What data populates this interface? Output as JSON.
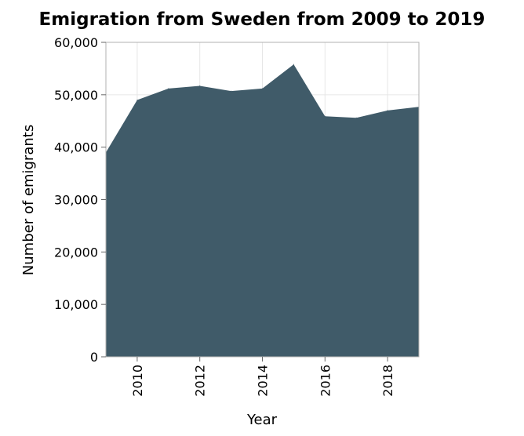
{
  "chart_data": {
    "type": "area",
    "title": "Emigration from Sweden from 2009 to 2019",
    "xlabel": "Year",
    "ylabel": "Number of emigrants",
    "x": [
      2009,
      2010,
      2011,
      2012,
      2013,
      2014,
      2015,
      2016,
      2017,
      2018,
      2019
    ],
    "values": [
      39000,
      49000,
      51200,
      51700,
      50700,
      51200,
      55800,
      45900,
      45600,
      47000,
      47700
    ],
    "xlim": [
      2009,
      2019
    ],
    "ylim": [
      0,
      60000
    ],
    "x_ticks": [
      2010,
      2012,
      2014,
      2016,
      2018
    ],
    "x_tick_labels": [
      "2010",
      "2012",
      "2014",
      "2016",
      "2018"
    ],
    "y_ticks": [
      0,
      10000,
      20000,
      30000,
      40000,
      50000,
      60000
    ],
    "y_tick_labels": [
      "0",
      "10,000",
      "20,000",
      "30,000",
      "40,000",
      "50,000",
      "60,000"
    ],
    "grid": true,
    "fill_color": "#405b69"
  }
}
